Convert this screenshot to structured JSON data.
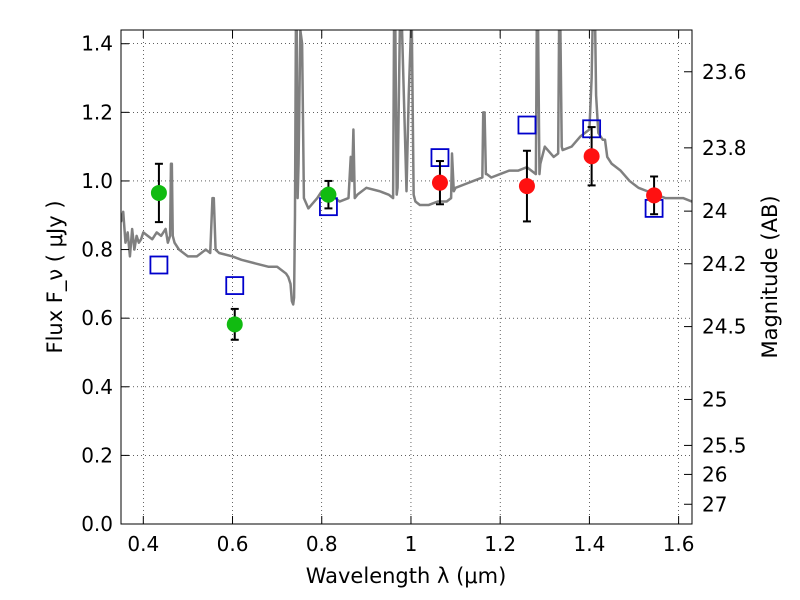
{
  "chart_data": {
    "type": "scatter",
    "title": "",
    "xlabel": "Wavelength  λ (μm)",
    "ylabel": "Flux  F_ν  ( μJy )",
    "ylabel_right": "Magnitude (AB)",
    "xlim": [
      0.35,
      1.63
    ],
    "ylim": [
      0.0,
      1.44
    ],
    "grid": true,
    "x_ticks": [
      0.4,
      0.6,
      0.8,
      1.0,
      1.2,
      1.4,
      1.6
    ],
    "x_tick_labels": [
      "0.4",
      "0.6",
      "0.8",
      "1",
      "1.2",
      "1.4",
      "1.6"
    ],
    "y_ticks": [
      0.0,
      0.2,
      0.4,
      0.6,
      0.8,
      1.0,
      1.2,
      1.4
    ],
    "y_tick_labels": [
      "0.0",
      "0.2",
      "0.4",
      "0.6",
      "0.8",
      "1.0",
      "1.2",
      "1.4"
    ],
    "right_ticks": [
      {
        "label": "23.6",
        "value": 23.6
      },
      {
        "label": "23.8",
        "value": 23.8
      },
      {
        "label": "24",
        "value": 24.0
      },
      {
        "label": "24.2",
        "value": 24.2
      },
      {
        "label": "24.5",
        "value": 24.5
      },
      {
        "label": "25",
        "value": 25.0
      },
      {
        "label": "25.5",
        "value": 25.5
      },
      {
        "label": "26",
        "value": 26.0
      },
      {
        "label": "27",
        "value": 27.0
      }
    ],
    "colors": {
      "spectrum": "#808080",
      "optical_points": "#11bb11",
      "nir_points": "#ff1111",
      "model_squares": "#0000cc",
      "error_bars": "#000000"
    },
    "series": [
      {
        "marker": "circle",
        "color": "#11bb11",
        "x": [
          0.435,
          0.605,
          0.815
        ],
        "y": [
          0.965,
          0.582,
          0.96
        ],
        "yerr": [
          0.085,
          0.045,
          0.04
        ]
      },
      {
        "marker": "circle",
        "color": "#ff1111",
        "x": [
          1.065,
          1.26,
          1.405,
          1.545
        ],
        "y": [
          0.995,
          0.985,
          1.072,
          0.958
        ],
        "yerr": [
          0.063,
          0.103,
          0.085,
          0.055
        ]
      },
      {
        "marker": "open-square",
        "color": "#0000cc",
        "x": [
          0.435,
          0.605,
          0.815,
          1.065,
          1.26,
          1.405,
          1.545
        ],
        "y": [
          0.755,
          0.695,
          0.925,
          1.068,
          1.163,
          1.152,
          0.92
        ]
      },
      {
        "marker": "line",
        "color": "#808080",
        "x": [
          0.35,
          0.355,
          0.36,
          0.365,
          0.37,
          0.375,
          0.38,
          0.385,
          0.39,
          0.395,
          0.4,
          0.41,
          0.42,
          0.43,
          0.44,
          0.45,
          0.455,
          0.46,
          0.462,
          0.464,
          0.466,
          0.47,
          0.48,
          0.5,
          0.52,
          0.54,
          0.55,
          0.555,
          0.558,
          0.562,
          0.57,
          0.6,
          0.62,
          0.65,
          0.68,
          0.7,
          0.72,
          0.725,
          0.73,
          0.733,
          0.736,
          0.738,
          0.74,
          0.742,
          0.744,
          0.746,
          0.748,
          0.752,
          0.756,
          0.76,
          0.77,
          0.79,
          0.8,
          0.82,
          0.84,
          0.86,
          0.865,
          0.868,
          0.871,
          0.874,
          0.88,
          0.9,
          0.93,
          0.95,
          0.96,
          0.962,
          0.965,
          0.968,
          0.97,
          0.975,
          0.98,
          0.99,
          0.995,
          1.0,
          1.002,
          1.006,
          1.01,
          1.02,
          1.04,
          1.06,
          1.08,
          1.09,
          1.092,
          1.096,
          1.1,
          1.12,
          1.14,
          1.16,
          1.162,
          1.165,
          1.168,
          1.17,
          1.18,
          1.2,
          1.22,
          1.24,
          1.26,
          1.28,
          1.282,
          1.285,
          1.288,
          1.29,
          1.3,
          1.32,
          1.33,
          1.332,
          1.335,
          1.338,
          1.34,
          1.36,
          1.38,
          1.4,
          1.405,
          1.407,
          1.41,
          1.413,
          1.415,
          1.42,
          1.43,
          1.435,
          1.44,
          1.45,
          1.47,
          1.49,
          1.51,
          1.53,
          1.55,
          1.57,
          1.59,
          1.61,
          1.63
        ],
        "y": [
          0.88,
          0.91,
          0.82,
          0.85,
          0.78,
          0.86,
          0.8,
          0.84,
          0.82,
          0.83,
          0.85,
          0.84,
          0.83,
          0.85,
          0.84,
          0.86,
          0.82,
          0.84,
          1.05,
          1.05,
          0.84,
          0.82,
          0.8,
          0.78,
          0.78,
          0.8,
          0.79,
          0.95,
          0.95,
          0.8,
          0.79,
          0.78,
          0.77,
          0.76,
          0.75,
          0.75,
          0.73,
          0.72,
          0.7,
          0.65,
          0.64,
          0.66,
          0.9,
          1.44,
          1.44,
          0.95,
          1.05,
          1.44,
          1.4,
          0.95,
          0.92,
          0.95,
          0.97,
          0.96,
          0.94,
          0.95,
          1.07,
          1.0,
          1.15,
          0.95,
          0.96,
          0.98,
          0.97,
          0.96,
          0.95,
          1.44,
          1.44,
          0.96,
          0.98,
          1.44,
          1.44,
          0.97,
          1.25,
          1.44,
          1.44,
          0.96,
          0.94,
          0.93,
          0.93,
          0.94,
          0.94,
          0.95,
          1.08,
          0.97,
          0.98,
          0.99,
          1.0,
          1.01,
          1.2,
          1.2,
          1.02,
          1.02,
          1.01,
          1.02,
          1.03,
          1.03,
          1.04,
          1.02,
          1.44,
          1.44,
          1.02,
          1.05,
          1.1,
          1.07,
          1.08,
          1.44,
          1.44,
          1.1,
          1.09,
          1.1,
          1.13,
          1.15,
          1.3,
          1.44,
          1.44,
          1.44,
          1.25,
          1.14,
          1.12,
          1.12,
          1.07,
          1.05,
          1.03,
          1.0,
          0.98,
          0.97,
          0.96,
          0.95,
          0.95,
          0.95,
          0.94
        ]
      }
    ]
  }
}
